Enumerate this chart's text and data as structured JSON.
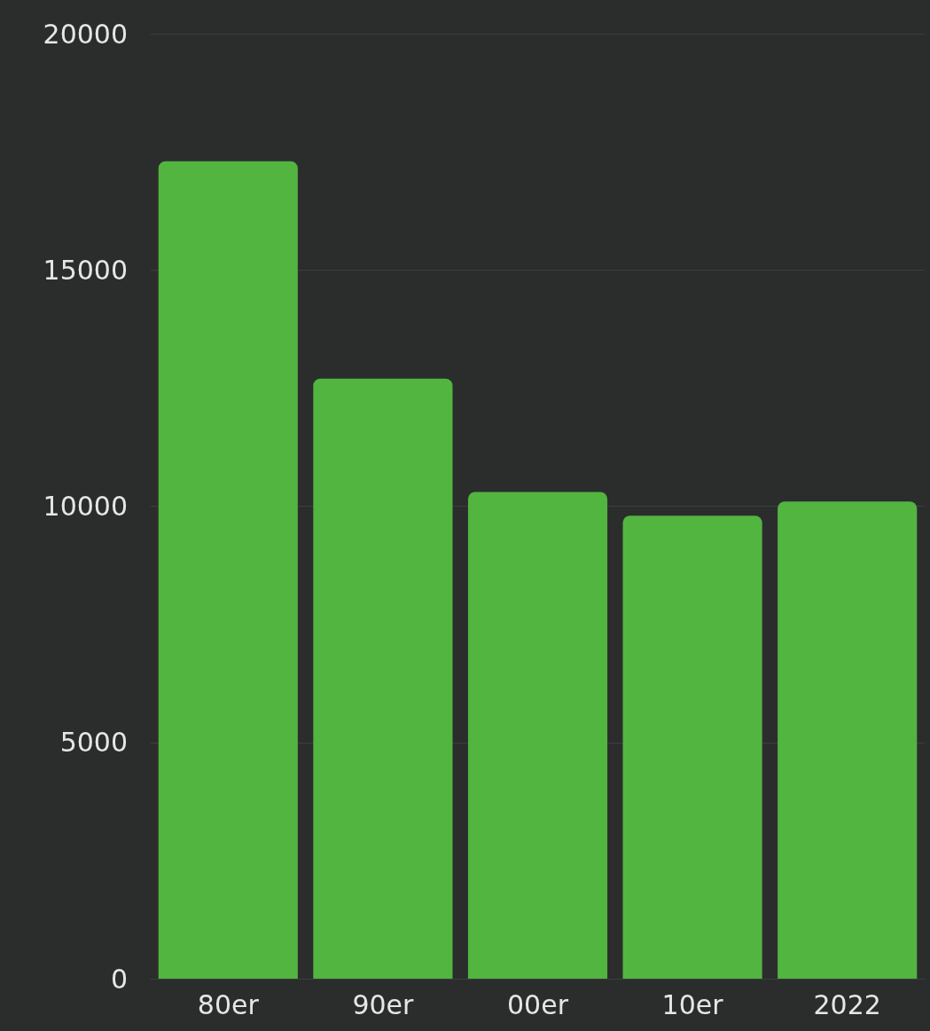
{
  "chart_data": {
    "type": "bar",
    "categories": [
      "80er",
      "90er",
      "00er",
      "10er",
      "2022"
    ],
    "values": [
      17300,
      12700,
      10300,
      9800,
      10100
    ],
    "color": "#52b540",
    "ylim": [
      0,
      20000
    ],
    "yticks": [
      0,
      5000,
      10000,
      15000,
      20000
    ],
    "grid": "y"
  }
}
